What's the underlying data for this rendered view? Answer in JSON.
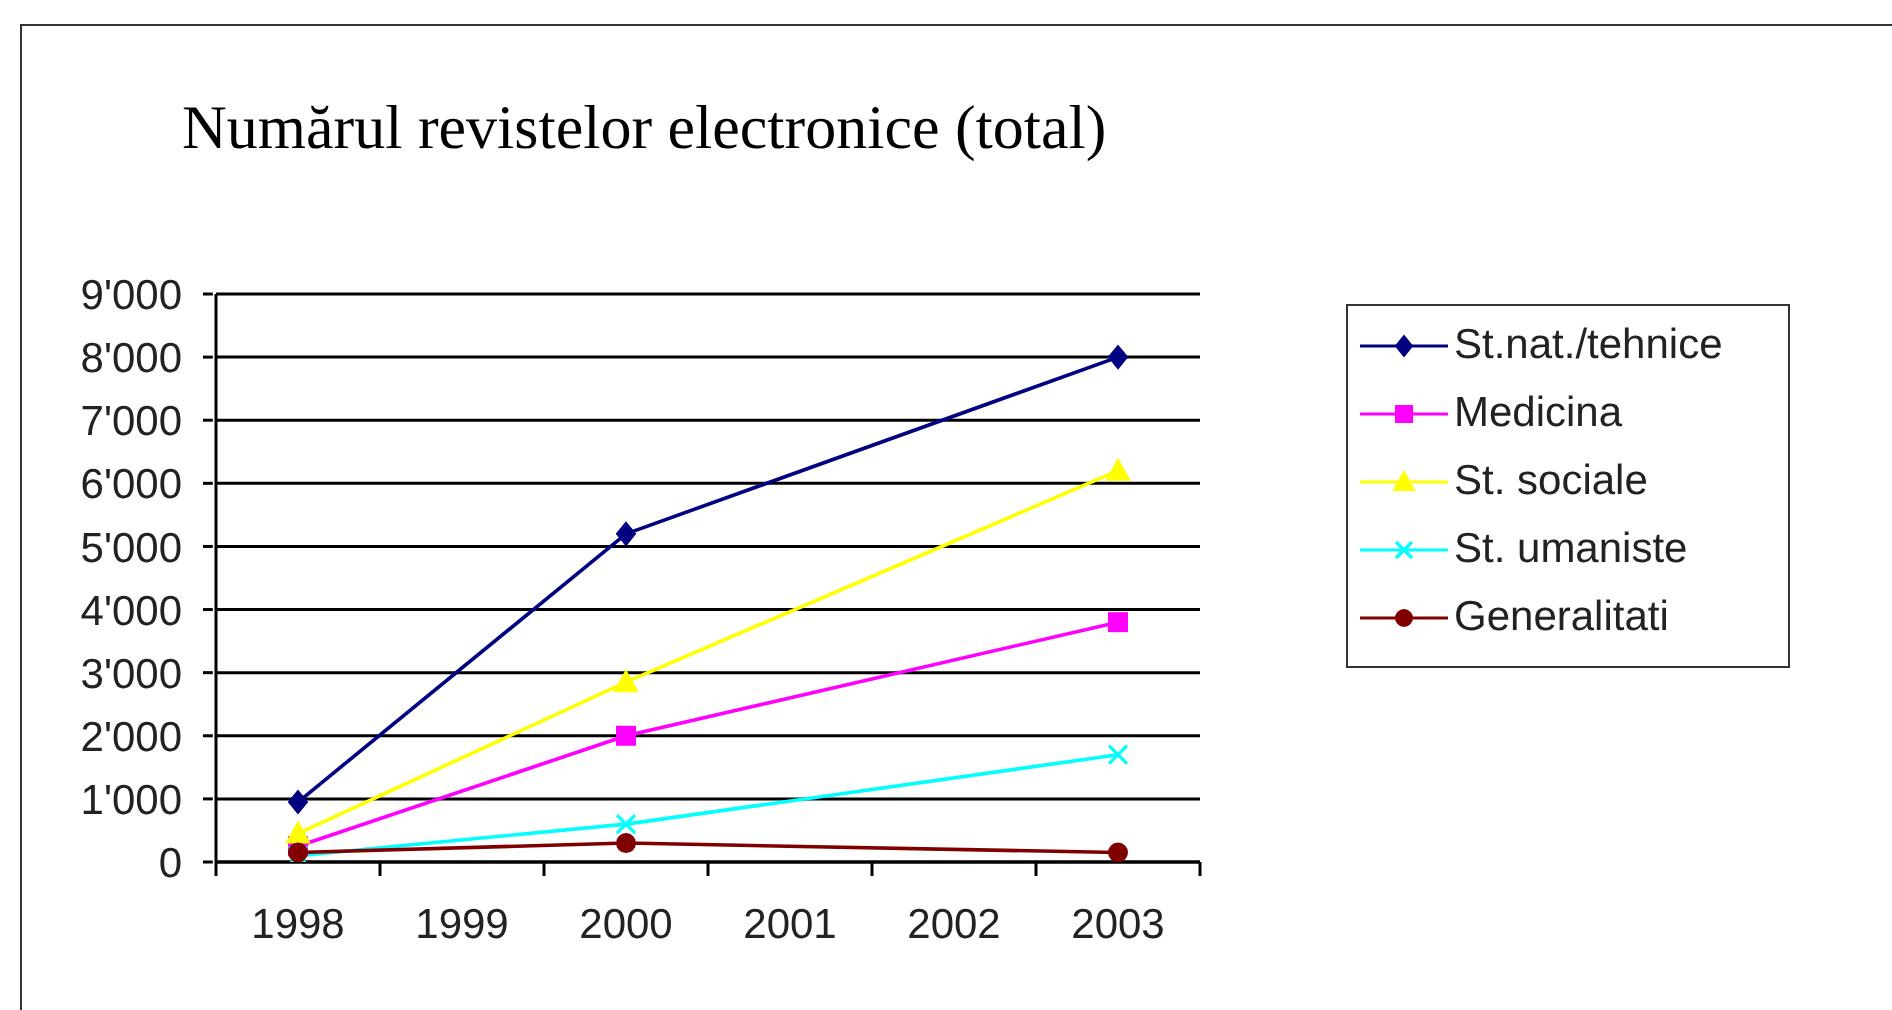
{
  "chart_data": {
    "type": "line",
    "title": "Numărul revistelor electronice (total)",
    "x": [
      1998,
      2000,
      2003
    ],
    "xlim": [
      1997.5,
      2003.5
    ],
    "xticks": [
      1998,
      1999,
      2000,
      2001,
      2002,
      2003
    ],
    "ylim": [
      0,
      9000
    ],
    "yticks": [
      0,
      {
        "value": 1000,
        "label": "1'000"
      },
      {
        "value": 2000,
        "label": "2'000"
      },
      {
        "value": 3000,
        "label": "3'000"
      },
      {
        "value": 4000,
        "label": "4'000"
      },
      {
        "value": 5000,
        "label": "5'000"
      },
      {
        "value": 6000,
        "label": "6'000"
      },
      {
        "value": 7000,
        "label": "7'000"
      },
      {
        "value": 8000,
        "label": "8'000"
      },
      {
        "value": 9000,
        "label": "9'000"
      }
    ],
    "grid": "y",
    "legend": "right",
    "line_style": "solid",
    "series": [
      {
        "name": "St.nat./tehnice",
        "color": "#000080",
        "marker": "diamond",
        "values": [
          950,
          5200,
          8000
        ]
      },
      {
        "name": "Medicina",
        "color": "#ff00ff",
        "marker": "square",
        "values": [
          250,
          2000,
          3800
        ]
      },
      {
        "name": "St. sociale",
        "color": "#ffff00",
        "marker": "triangle",
        "values": [
          450,
          2850,
          6200
        ]
      },
      {
        "name": "St. umaniste",
        "color": "#00ffff",
        "marker": "cross",
        "values": [
          100,
          600,
          1700
        ]
      },
      {
        "name": "Generalitati",
        "color": "#800000",
        "marker": "circle",
        "values": [
          150,
          300,
          150
        ]
      }
    ]
  }
}
